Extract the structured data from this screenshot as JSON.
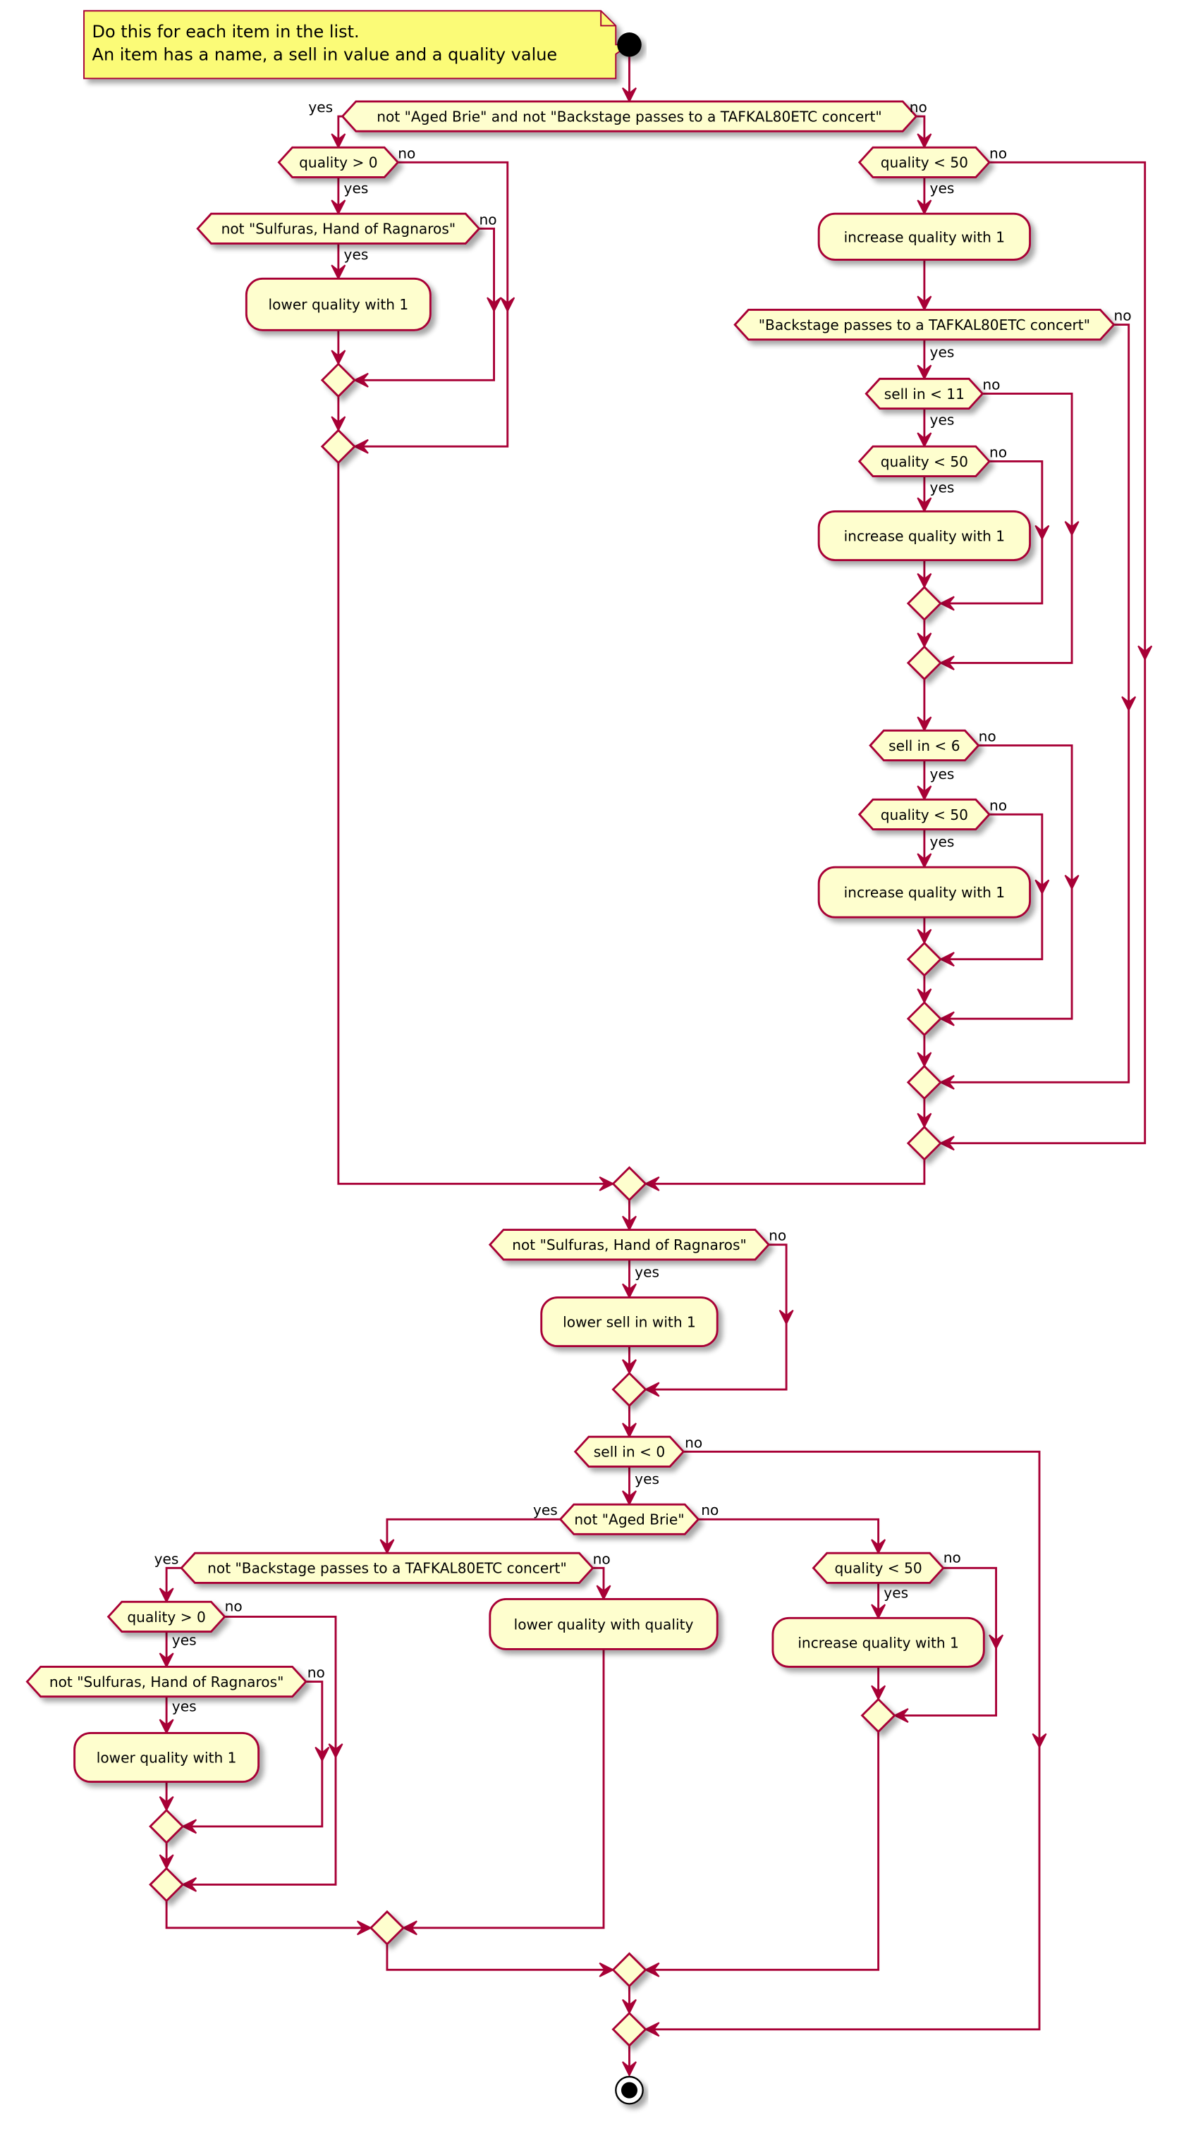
{
  "colors": {
    "border": "#A80036",
    "node_fill": "#FEFECE",
    "note_fill": "#FBFB77",
    "line": "#A80036"
  },
  "note": {
    "lines": [
      "Do this for each item in the list.",
      "An item has a name, a sell in value and a quality value"
    ]
  },
  "decisions": [
    {
      "label": "not \"Aged Brie\" and not \"Backstage passes to a TAFKAL80ETC concert\"",
      "yes": "yes",
      "no": "no"
    },
    {
      "label": "quality > 0",
      "yes": "yes",
      "no": "no"
    },
    {
      "label": "not \"Sulfuras, Hand of Ragnaros\"",
      "yes": "yes",
      "no": "no"
    },
    {
      "label": "quality < 50",
      "yes": "yes",
      "no": "no"
    },
    {
      "label": "\"Backstage passes to a TAFKAL80ETC concert\"",
      "yes": "yes",
      "no": "no"
    },
    {
      "label": "sell in < 11",
      "yes": "yes",
      "no": "no"
    },
    {
      "label": "quality < 50",
      "yes": "yes",
      "no": "no"
    },
    {
      "label": "sell in < 6",
      "yes": "yes",
      "no": "no"
    },
    {
      "label": "quality < 50",
      "yes": "yes",
      "no": "no"
    },
    {
      "label": "not \"Sulfuras, Hand of Ragnaros\"",
      "yes": "yes",
      "no": "no"
    },
    {
      "label": "sell in < 0",
      "yes": "yes",
      "no": "no"
    },
    {
      "label": "not \"Aged Brie\"",
      "yes": "yes",
      "no": "no"
    },
    {
      "label": "not \"Backstage passes to a TAFKAL80ETC concert\"",
      "yes": "yes",
      "no": "no"
    },
    {
      "label": "quality > 0",
      "yes": "yes",
      "no": "no"
    },
    {
      "label": "not \"Sulfuras, Hand of Ragnaros\"",
      "yes": "yes",
      "no": "no"
    },
    {
      "label": "quality < 50",
      "yes": "yes",
      "no": "no"
    }
  ],
  "actions": [
    {
      "label": "lower quality with 1"
    },
    {
      "label": "increase quality with 1"
    },
    {
      "label": "increase quality with 1"
    },
    {
      "label": "increase quality with 1"
    },
    {
      "label": "lower sell in with 1"
    },
    {
      "label": "lower quality with quality"
    },
    {
      "label": "lower quality with 1"
    },
    {
      "label": "increase quality with 1"
    }
  ]
}
